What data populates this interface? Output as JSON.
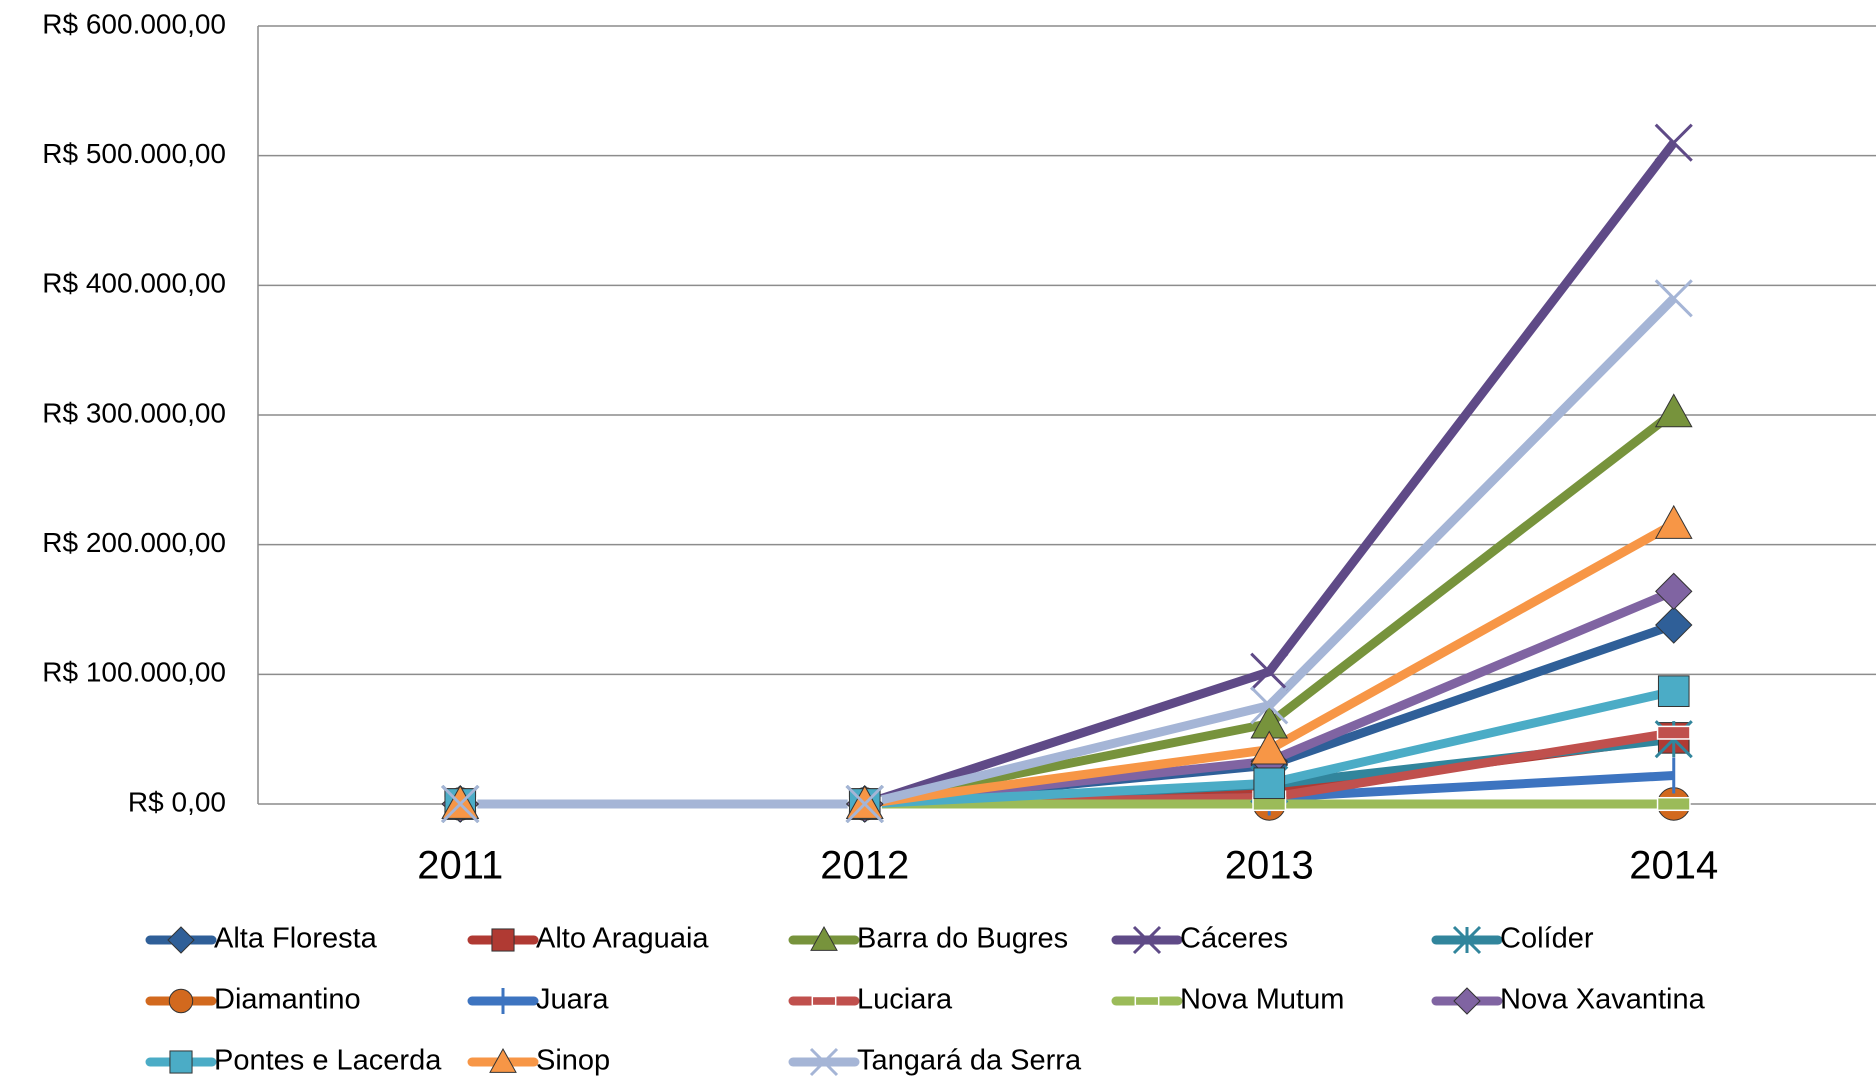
{
  "chart_data": {
    "type": "line",
    "categories": [
      "2011",
      "2012",
      "2013",
      "2014"
    ],
    "ylim": [
      0,
      600000
    ],
    "yticks": [
      {
        "value": 0,
        "label": "R$ 0,00"
      },
      {
        "value": 100000,
        "label": "R$ 100.000,00"
      },
      {
        "value": 200000,
        "label": "R$ 200.000,00"
      },
      {
        "value": 300000,
        "label": "R$ 300.000,00"
      },
      {
        "value": 400000,
        "label": "R$ 400.000,00"
      },
      {
        "value": 500000,
        "label": "R$ 500.000,00"
      },
      {
        "value": 600000,
        "label": "R$ 600.000,00"
      }
    ],
    "grid": true,
    "legend": "bottom",
    "series": [
      {
        "name": "Alta Floresta",
        "color": "#2f5f98",
        "marker": "diamond",
        "values": [
          0,
          0,
          30000,
          138000
        ]
      },
      {
        "name": "Alto Araguaia",
        "color": "#b03a33",
        "marker": "square",
        "values": [
          0,
          0,
          10000,
          51000
        ]
      },
      {
        "name": "Barra do Bugres",
        "color": "#77933c",
        "marker": "triangle",
        "values": [
          0,
          0,
          62000,
          302000
        ]
      },
      {
        "name": "Cáceres",
        "color": "#5f4a87",
        "marker": "x",
        "values": [
          0,
          0,
          102000,
          510000
        ]
      },
      {
        "name": "Colíder",
        "color": "#31859c",
        "marker": "star",
        "values": [
          0,
          0,
          15000,
          50000
        ]
      },
      {
        "name": "Diamantino",
        "color": "#d2691e",
        "marker": "circle",
        "values": [
          0,
          0,
          0,
          0
        ]
      },
      {
        "name": "Juara",
        "color": "#3d74c0",
        "marker": "plus",
        "values": [
          0,
          0,
          5000,
          22000
        ]
      },
      {
        "name": "Luciara",
        "color": "#c0504d",
        "marker": "dash",
        "values": [
          0,
          0,
          5000,
          55000
        ]
      },
      {
        "name": "Nova Mutum",
        "color": "#9bbb59",
        "marker": "dash",
        "values": [
          0,
          0,
          0,
          0
        ]
      },
      {
        "name": "Nova Xavantina",
        "color": "#8064a2",
        "marker": "diamond",
        "values": [
          0,
          0,
          33000,
          164000
        ]
      },
      {
        "name": "Pontes e Lacerda",
        "color": "#4bacc6",
        "marker": "square",
        "values": [
          0,
          0,
          16000,
          87000
        ]
      },
      {
        "name": "Sinop",
        "color": "#f79646",
        "marker": "triangle",
        "values": [
          0,
          0,
          42000,
          216000
        ]
      },
      {
        "name": "Tangará da Serra",
        "color": "#a5b5d6",
        "marker": "x",
        "values": [
          0,
          0,
          76000,
          390000
        ]
      }
    ]
  }
}
